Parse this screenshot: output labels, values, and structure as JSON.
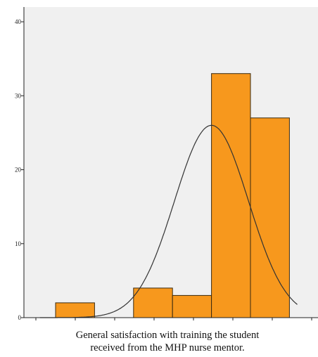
{
  "chart_data": {
    "type": "bar",
    "subtype": "histogram",
    "title": "",
    "xlabel": [
      "General satisfaction with training the student",
      "received from the MHP nurse mentor."
    ],
    "ylabel": "",
    "ylim": [
      0,
      40
    ],
    "yticks": [
      0,
      10,
      20,
      30,
      40
    ],
    "x_tick_labels": [],
    "bars": [
      {
        "bin": 1,
        "value": 2
      },
      {
        "bin": 3,
        "value": 4
      },
      {
        "bin": 4,
        "value": 3
      },
      {
        "bin": 5,
        "value": 33
      },
      {
        "bin": 6,
        "value": 27
      }
    ],
    "normal_curve": {
      "mean": 5.0,
      "std_dev": 0.95,
      "peak": 26
    },
    "grid": false,
    "legend": "none",
    "colors": {
      "bar_fill": "#F7981D",
      "bar_stroke": "#3a2a10",
      "curve": "#333333",
      "plot_bg": "#F0F0F0"
    }
  }
}
